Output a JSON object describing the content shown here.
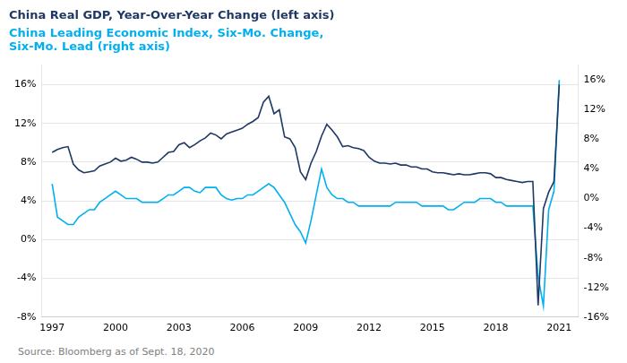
{
  "chart_data": {
    "type": "line",
    "title": "China Real GDP, Year-Over-Year Change (left axis)",
    "subtitle": [
      "China Leading Economic Index, Six-Mo. Change,",
      "Six-Mo. Lead (right axis)"
    ],
    "annotations": [
      "Source: Bloomberg as of Sept. 18, 2020"
    ],
    "grid": "y",
    "xlim": [
      1996.5,
      2021.9
    ],
    "xticks": [
      1997,
      2000,
      2003,
      2006,
      2009,
      2012,
      2015,
      2018,
      2021
    ],
    "ylim": [
      -8,
      18
    ],
    "yticks": [
      {
        "value": -8,
        "label": "-8%"
      },
      {
        "value": -4,
        "label": "-4%"
      },
      {
        "value": 0,
        "label": "0%"
      },
      {
        "value": 4,
        "label": "4%"
      },
      {
        "value": 8,
        "label": "8%"
      },
      {
        "value": 12,
        "label": "12%"
      },
      {
        "value": 16,
        "label": "16%"
      }
    ],
    "y2lim": [
      -16,
      18
    ],
    "y2ticks": [
      {
        "value": -16,
        "label": "-16%"
      },
      {
        "value": -12,
        "label": "-12%"
      },
      {
        "value": -8,
        "label": "-8%"
      },
      {
        "value": -4,
        "label": "-4%"
      },
      {
        "value": 0,
        "label": "0%"
      },
      {
        "value": 4,
        "label": "4%"
      },
      {
        "value": 8,
        "label": "8%"
      },
      {
        "value": 12,
        "label": "12%"
      },
      {
        "value": 16,
        "label": "16%"
      }
    ],
    "x": [
      1997.0,
      1997.25,
      1997.5,
      1997.75,
      1998.0,
      1998.25,
      1998.5,
      1998.75,
      1999.0,
      1999.25,
      1999.5,
      1999.75,
      2000.0,
      2000.25,
      2000.5,
      2000.75,
      2001.0,
      2001.25,
      2001.5,
      2001.75,
      2002.0,
      2002.25,
      2002.5,
      2002.75,
      2003.0,
      2003.25,
      2003.5,
      2003.75,
      2004.0,
      2004.25,
      2004.5,
      2004.75,
      2005.0,
      2005.25,
      2005.5,
      2005.75,
      2006.0,
      2006.25,
      2006.5,
      2006.75,
      2007.0,
      2007.25,
      2007.5,
      2007.75,
      2008.0,
      2008.25,
      2008.5,
      2008.75,
      2009.0,
      2009.25,
      2009.5,
      2009.75,
      2010.0,
      2010.25,
      2010.5,
      2010.75,
      2011.0,
      2011.25,
      2011.5,
      2011.75,
      2012.0,
      2012.25,
      2012.5,
      2012.75,
      2013.0,
      2013.25,
      2013.5,
      2013.75,
      2014.0,
      2014.25,
      2014.5,
      2014.75,
      2015.0,
      2015.25,
      2015.5,
      2015.75,
      2016.0,
      2016.25,
      2016.5,
      2016.75,
      2017.0,
      2017.25,
      2017.5,
      2017.75,
      2018.0,
      2018.25,
      2018.5,
      2018.75,
      2019.0,
      2019.25,
      2019.5,
      2019.75,
      2020.0,
      2020.25,
      2020.5,
      2020.75,
      2021.0
    ],
    "series": [
      {
        "color": "#1F3864",
        "axis": "y",
        "values": [
          9.0,
          9.3,
          9.5,
          9.6,
          7.8,
          7.2,
          6.9,
          7.0,
          7.1,
          7.6,
          7.8,
          8.0,
          8.4,
          8.1,
          8.2,
          8.5,
          8.3,
          8.0,
          8.0,
          7.9,
          8.0,
          8.5,
          9.0,
          9.1,
          9.8,
          10.0,
          9.5,
          9.8,
          10.2,
          10.5,
          11.0,
          10.8,
          10.4,
          10.9,
          11.1,
          11.3,
          11.5,
          11.9,
          12.2,
          12.6,
          14.2,
          14.8,
          13.0,
          13.4,
          10.6,
          10.4,
          9.5,
          7.0,
          6.2,
          7.9,
          9.1,
          10.7,
          11.9,
          11.3,
          10.6,
          9.6,
          9.7,
          9.5,
          9.4,
          9.2,
          8.5,
          8.1,
          7.9,
          7.9,
          7.8,
          7.9,
          7.7,
          7.7,
          7.5,
          7.5,
          7.3,
          7.3,
          7.0,
          6.9,
          6.9,
          6.8,
          6.7,
          6.8,
          6.7,
          6.7,
          6.8,
          6.9,
          6.9,
          6.8,
          6.4,
          6.4,
          6.2,
          6.1,
          6.0,
          5.9,
          6.0,
          6.0,
          -6.8,
          3.2,
          4.9,
          6.0,
          16.0
        ]
      },
      {
        "color": "#00B0F0",
        "axis": "y2",
        "values": [
          2.0,
          -2.5,
          -3.0,
          -3.5,
          -3.5,
          -2.5,
          -2.0,
          -1.5,
          -1.5,
          -0.5,
          0.0,
          0.5,
          1.0,
          0.5,
          0.0,
          0.0,
          0.0,
          -0.5,
          -0.5,
          -0.5,
          -0.5,
          0.0,
          0.5,
          0.5,
          1.0,
          1.5,
          1.5,
          1.0,
          0.8,
          1.5,
          1.5,
          1.5,
          0.5,
          0.0,
          -0.2,
          0.0,
          0.0,
          0.5,
          0.5,
          1.0,
          1.5,
          2.0,
          1.5,
          0.5,
          -0.5,
          -2.0,
          -3.5,
          -4.5,
          -6.0,
          -3.0,
          0.5,
          4.0,
          1.5,
          0.5,
          0.0,
          0.0,
          -0.5,
          -0.5,
          -1.0,
          -1.0,
          -1.0,
          -1.0,
          -1.0,
          -1.0,
          -1.0,
          -0.5,
          -0.5,
          -0.5,
          -0.5,
          -0.5,
          -1.0,
          -1.0,
          -1.0,
          -1.0,
          -1.0,
          -1.5,
          -1.5,
          -1.0,
          -0.5,
          -0.5,
          -0.5,
          0.0,
          0.0,
          0.0,
          -0.5,
          -0.5,
          -1.0,
          -1.0,
          -1.0,
          -1.0,
          -1.0,
          -1.0,
          -10.5,
          -14.5,
          -1.5,
          1.0,
          16.0
        ]
      }
    ]
  }
}
